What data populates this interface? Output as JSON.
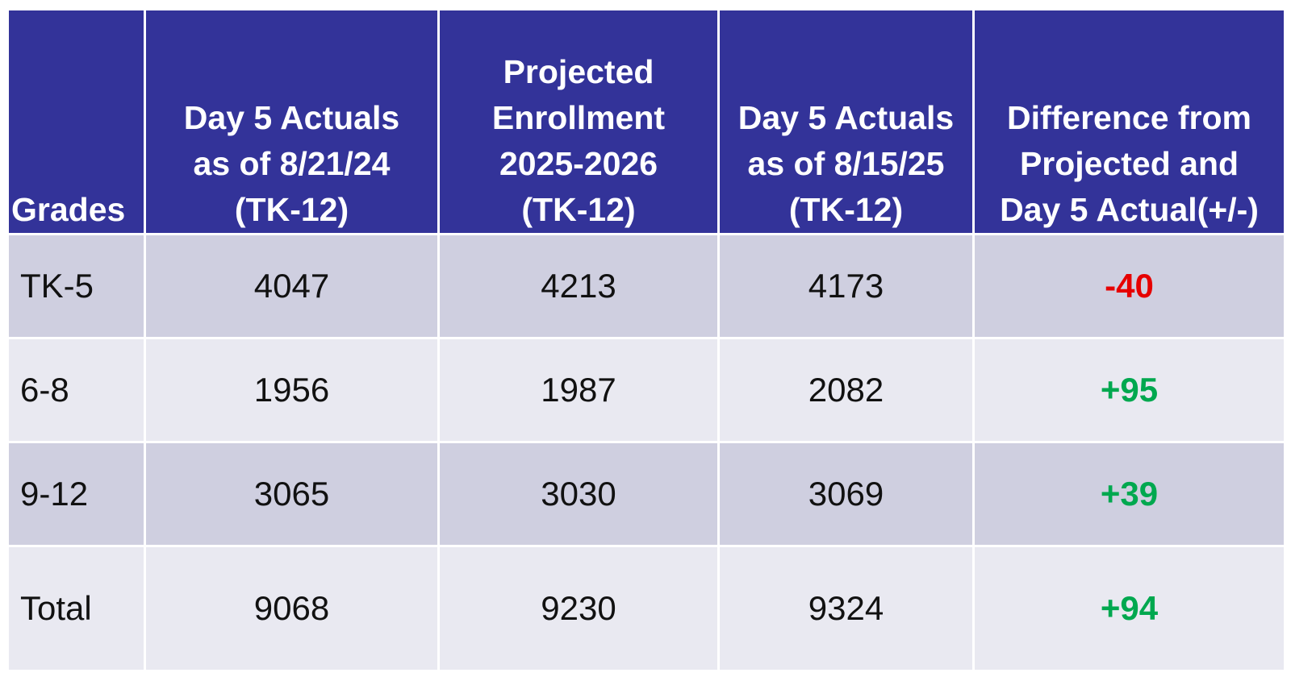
{
  "table": {
    "headers": [
      [
        "Grades"
      ],
      [
        "Day 5 Actuals",
        "as of 8/21/24",
        "(TK-12)"
      ],
      [
        "Projected",
        "Enrollment",
        "2025-2026",
        "(TK-12)"
      ],
      [
        "Day 5 Actuals",
        "as of 8/15/25",
        "(TK-12)"
      ],
      [
        "Difference from",
        "Projected and",
        "Day 5 Actual(+/-)"
      ]
    ],
    "rows": [
      [
        "TK-5",
        "4047",
        "4213",
        "4173",
        "-40"
      ],
      [
        "6-8",
        "1956",
        "1987",
        "2082",
        "+95"
      ],
      [
        "9-12",
        "3065",
        "3030",
        "3069",
        "+39"
      ],
      [
        "Total",
        "9068",
        "9230",
        "9324",
        "+94"
      ]
    ]
  }
}
